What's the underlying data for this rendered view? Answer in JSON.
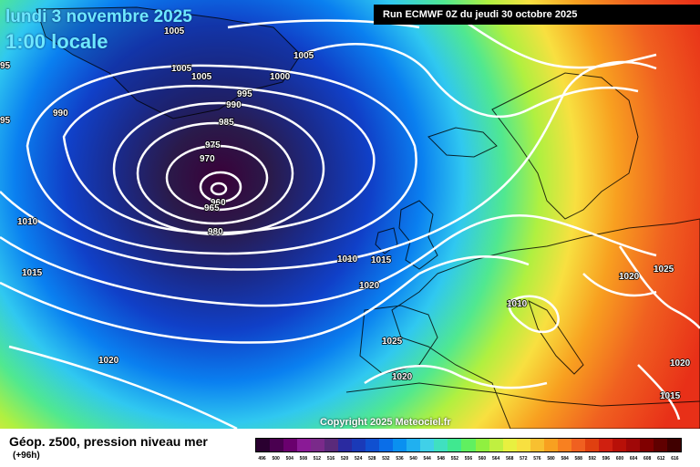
{
  "header": {
    "date_line": "lundi 3 novembre 2025",
    "time_line": "1:00 locale",
    "run_info": "Run ECMWF 0Z du jeudi 30 octobre 2025"
  },
  "copyright": "Copyright 2025 Meteociel.fr",
  "footer": {
    "parameter": "Géop. z500, pression niveau mer",
    "lead_time": "(+96h)"
  },
  "color_scale": {
    "values": [
      "496",
      "500",
      "504",
      "508",
      "512",
      "516",
      "520",
      "524",
      "528",
      "532",
      "536",
      "540",
      "544",
      "548",
      "552",
      "556",
      "560",
      "564",
      "568",
      "572",
      "576",
      "580",
      "584",
      "588",
      "592",
      "596",
      "600",
      "604",
      "608",
      "612",
      "616"
    ],
    "colors": [
      "#2a0030",
      "#4a0050",
      "#6a006e",
      "#8a1a96",
      "#7a2a8a",
      "#5a2a7a",
      "#2a2aa0",
      "#1a3ab8",
      "#1050d0",
      "#0a6ee8",
      "#0a90f0",
      "#20b0f0",
      "#40d0e8",
      "#40e0c0",
      "#40e890",
      "#60f060",
      "#90f040",
      "#c0f040",
      "#e8f040",
      "#f8e040",
      "#f8c030",
      "#f8a020",
      "#f88020",
      "#f06020",
      "#e04010",
      "#d02010",
      "#b81008",
      "#a00808",
      "#800000",
      "#600000",
      "#400000"
    ]
  },
  "isobars": [
    {
      "label": "1005"
    },
    {
      "label": "1005"
    },
    {
      "label": "1005"
    },
    {
      "label": "1005"
    },
    {
      "label": "1000"
    },
    {
      "label": "995"
    },
    {
      "label": "990"
    },
    {
      "label": "990"
    },
    {
      "label": "985"
    },
    {
      "label": "975"
    },
    {
      "label": "970"
    },
    {
      "label": "960"
    },
    {
      "label": "965"
    },
    {
      "label": "980"
    },
    {
      "label": "1010"
    },
    {
      "label": "1015"
    },
    {
      "label": "1010"
    },
    {
      "label": "1015"
    },
    {
      "label": "1020"
    },
    {
      "label": "1010"
    },
    {
      "label": "1020"
    },
    {
      "label": "1025"
    },
    {
      "label": "1025"
    },
    {
      "label": "1020"
    },
    {
      "label": "1020"
    },
    {
      "label": "1020"
    },
    {
      "label": "1015"
    },
    {
      "label": "95"
    },
    {
      "label": "95"
    }
  ]
}
